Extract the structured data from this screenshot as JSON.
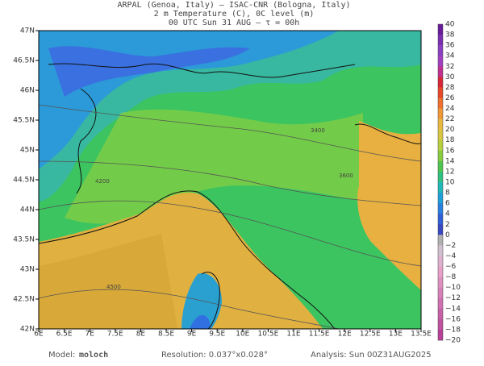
{
  "header": {
    "lines": [
      "ARPAL (Genoa, Italy)  –  ISAC-CNR (Bologna, Italy)",
      "2 m Temperature (C), 0C level (m)",
      "00 UTC Sun 31 AUG  –  τ = 00h"
    ]
  },
  "map": {
    "lon_labels": [
      "6E",
      "6.5E",
      "7E",
      "7.5E",
      "8E",
      "8.5E",
      "9E",
      "9.5E",
      "10E",
      "10.5E",
      "11E",
      "11.5E",
      "12E",
      "12.5E",
      "13E",
      "13.5E"
    ],
    "lat_labels": [
      "47N",
      "46.5N",
      "46N",
      "45.5N",
      "45N",
      "44.5N",
      "44N",
      "43.5N",
      "43N",
      "42.5N",
      "42N"
    ],
    "contour_labels": [
      "3400",
      "3600",
      "4200",
      "4500"
    ]
  },
  "colorbar": {
    "labels": [
      "40",
      "38",
      "36",
      "34",
      "32",
      "30",
      "28",
      "26",
      "24",
      "22",
      "20",
      "18",
      "16",
      "14",
      "12",
      "10",
      "8",
      "6",
      "4",
      "2",
      "0",
      "−2",
      "−4",
      "−6",
      "−8",
      "−10",
      "−12",
      "−14",
      "−16",
      "−18",
      "−20"
    ]
  },
  "footer": {
    "model_label": "Model:",
    "model": "moloch",
    "resolution": "Resolution: 0.037°x0.028°",
    "analysis": "Analysis: Sun 00Z31AUG2025"
  }
}
